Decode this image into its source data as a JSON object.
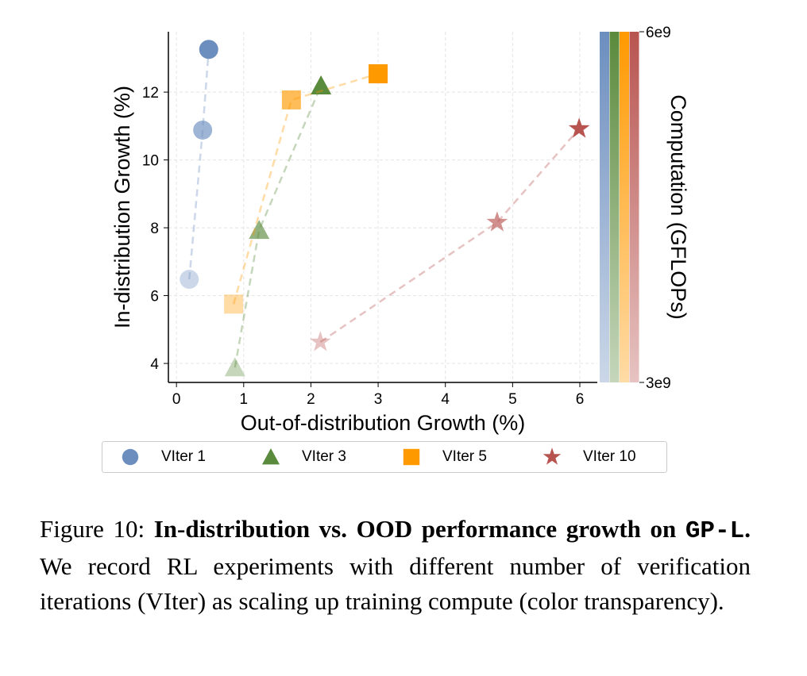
{
  "chart_data": {
    "type": "scatter",
    "xlabel": "Out-of-distribution Growth (%)",
    "ylabel": "In-distribution Growth (%)",
    "xlim": [
      -0.12,
      6.26
    ],
    "ylim": [
      3.44,
      13.78
    ],
    "xticks": [
      0,
      1,
      2,
      3,
      4,
      5,
      6
    ],
    "yticks": [
      4,
      6,
      8,
      10,
      12
    ],
    "grid": true,
    "colorbar": {
      "label": "Computation (GFLOPs)",
      "min_label": "3e9",
      "max_label": "6e9"
    },
    "legend_position": "bottom",
    "series": [
      {
        "name": "VIter 1",
        "marker": "circle",
        "color": "#6c8ebf",
        "points": [
          {
            "x": 0.19,
            "y": 6.48
          },
          {
            "x": 0.39,
            "y": 10.88
          },
          {
            "x": 0.48,
            "y": 13.26
          }
        ]
      },
      {
        "name": "VIter 3",
        "marker": "triangle",
        "color": "#5a8a3c",
        "points": [
          {
            "x": 0.87,
            "y": 3.88
          },
          {
            "x": 1.23,
            "y": 7.93
          },
          {
            "x": 2.15,
            "y": 12.19
          }
        ]
      },
      {
        "name": "VIter 5",
        "marker": "square",
        "color": "#ff9900",
        "points": [
          {
            "x": 0.85,
            "y": 5.75
          },
          {
            "x": 1.71,
            "y": 11.77
          },
          {
            "x": 3.0,
            "y": 12.54
          }
        ]
      },
      {
        "name": "VIter 10",
        "marker": "star",
        "color": "#b85450",
        "points": [
          {
            "x": 2.14,
            "y": 4.63
          },
          {
            "x": 4.77,
            "y": 8.16
          },
          {
            "x": 5.99,
            "y": 10.92
          }
        ]
      }
    ]
  },
  "caption": {
    "prefix": "Figure 10: ",
    "bold": "In-distribution vs. OOD performance growth on ",
    "code": "GP-L",
    "bold_end": ".",
    "rest": " We record RL experiments with different number of verification iterations (VIter) as scaling up training compute (color transparency)."
  }
}
